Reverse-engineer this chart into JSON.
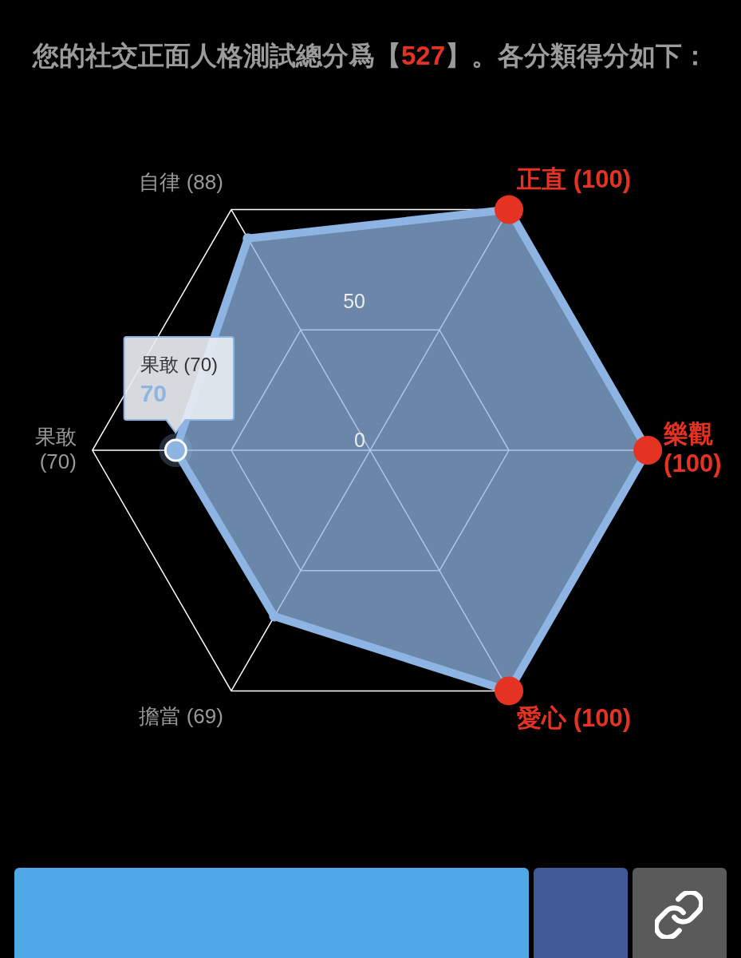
{
  "chart_data": {
    "type": "radar",
    "title": "您的社交正面人格測試總分爲【527】。各分類得分如下：",
    "categories": [
      "正直 (100)",
      "樂觀 (100)",
      "愛心 (100)",
      "擔當 (69)",
      "果敢 (70)",
      "自律 (88)"
    ],
    "series": [
      {
        "color": "#8db4e2",
        "values": [
          100,
          100,
          100,
          69,
          70,
          88
        ],
        "colors": [
          "#e53323",
          "#e53323",
          "#e53323",
          "#8db4e2",
          "#8db4e2",
          "#8db4e2"
        ]
      }
    ],
    "ylim": [
      0,
      100
    ],
    "yticks": [
      0,
      50
    ],
    "grid": true,
    "marker": "circle",
    "annotations": [
      {
        "text": "70",
        "x": "果敢 (70)"
      }
    ]
  }
}
